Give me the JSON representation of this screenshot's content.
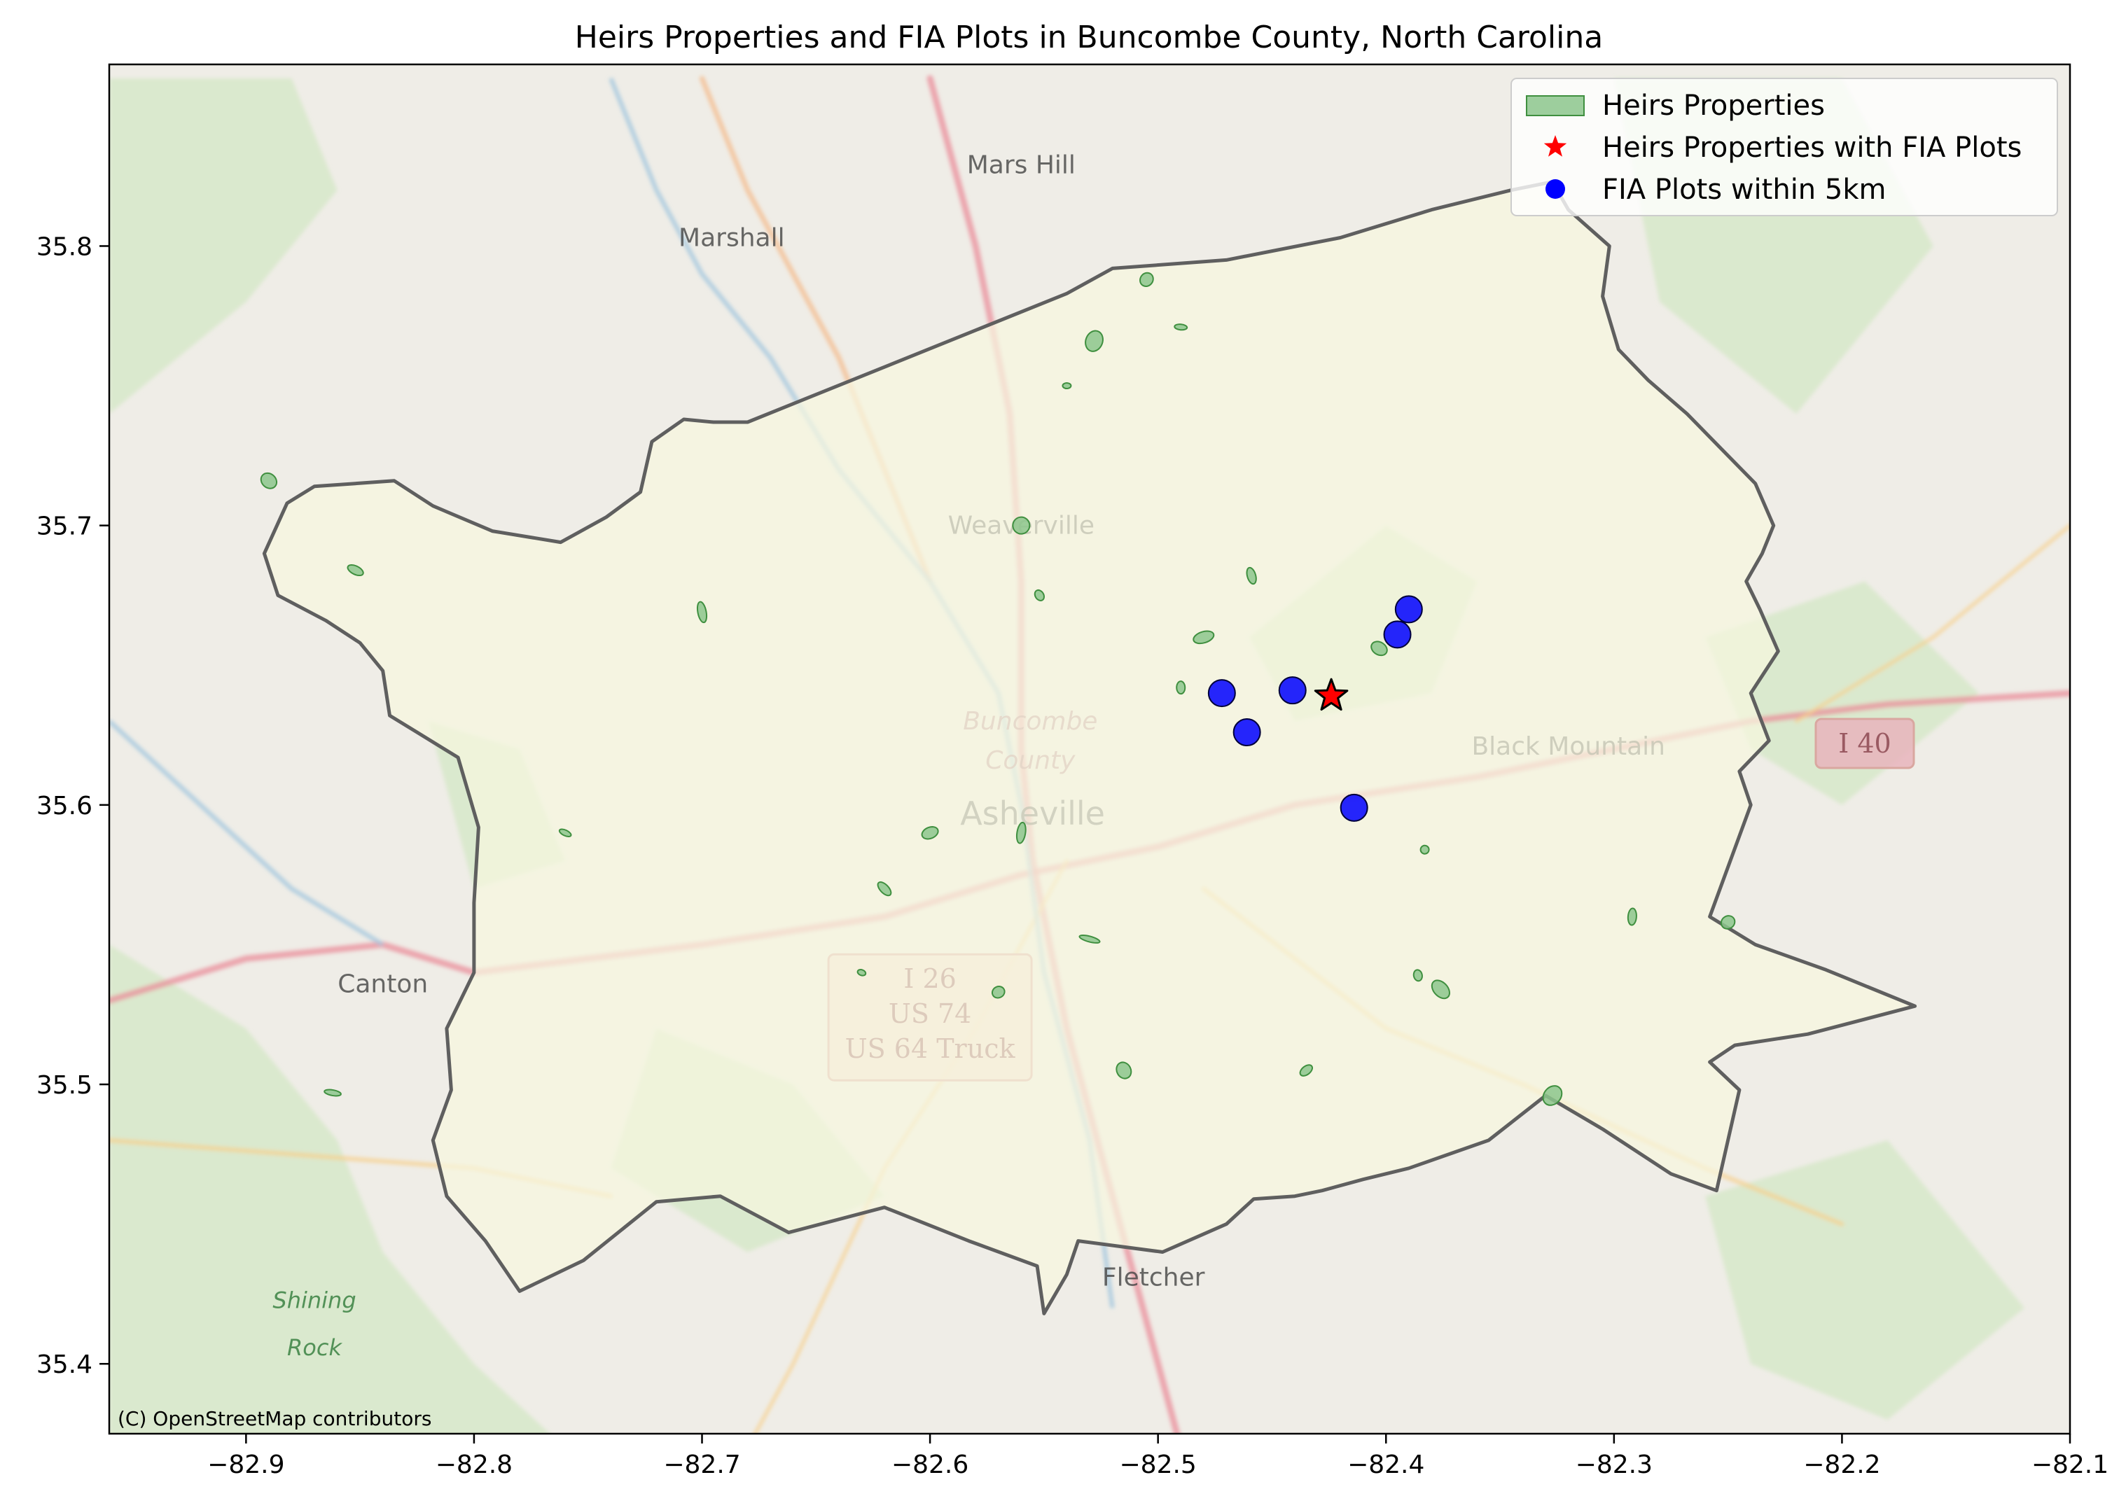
{
  "title": "Heirs Properties and FIA Plots in Buncombe County, North Carolina",
  "attribution": "(C) OpenStreetMap contributors",
  "axes": {
    "xlim": [
      -82.96,
      -82.1
    ],
    "ylim": [
      35.375,
      35.865
    ],
    "xticks": [
      -82.9,
      -82.8,
      -82.7,
      -82.6,
      -82.5,
      -82.4,
      -82.3,
      -82.2,
      -82.1
    ],
    "yticks": [
      35.4,
      35.5,
      35.6,
      35.7,
      35.8
    ],
    "xtick_labels": [
      "−82.9",
      "−82.8",
      "−82.7",
      "−82.6",
      "−82.5",
      "−82.4",
      "−82.3",
      "−82.2",
      "−82.1"
    ],
    "ytick_labels": [
      "35.4",
      "35.5",
      "35.6",
      "35.7",
      "35.8"
    ]
  },
  "legend": {
    "placement": "top-right",
    "items": [
      {
        "label": "Heirs Properties",
        "marker": "patch",
        "color": "#8cc68c"
      },
      {
        "label": "Heirs Properties with FIA Plots",
        "marker": "star",
        "color": "#ff0000"
      },
      {
        "label": "FIA Plots within 5km",
        "marker": "circle",
        "color": "#0000ff"
      }
    ]
  },
  "basemap_labels": [
    {
      "text": "Mars Hill",
      "lon": -82.56,
      "lat": 35.826
    },
    {
      "text": "Marshall",
      "lon": -82.687,
      "lat": 35.8
    },
    {
      "text": "Weaverville",
      "lon": -82.56,
      "lat": 35.697
    },
    {
      "text": "Buncombe",
      "lon": -82.556,
      "lat": 35.627,
      "style": "county"
    },
    {
      "text": "County",
      "lon": -82.556,
      "lat": 35.613,
      "style": "county"
    },
    {
      "text": "Asheville",
      "lon": -82.555,
      "lat": 35.593,
      "style": "city"
    },
    {
      "text": "Black Mountain",
      "lon": -82.32,
      "lat": 35.618
    },
    {
      "text": "Canton",
      "lon": -82.84,
      "lat": 35.533
    },
    {
      "text": "Fletcher",
      "lon": -82.502,
      "lat": 35.428
    },
    {
      "text": "Shining",
      "lon": -82.87,
      "lat": 35.42,
      "style": "park"
    },
    {
      "text": "Rock",
      "lon": -82.87,
      "lat": 35.403,
      "style": "park"
    }
  ],
  "road_shields": [
    {
      "lines": [
        "I 26",
        "US 74",
        "US 64 Truck"
      ],
      "lon": -82.6,
      "lat": 35.524
    },
    {
      "lines": [
        "I 40"
      ],
      "lon": -82.19,
      "lat": 35.622
    }
  ],
  "chart_data": {
    "type": "scatter",
    "title": "Heirs Properties and FIA Plots in Buncombe County, North Carolina",
    "xlim": [
      -82.96,
      -82.1
    ],
    "ylim": [
      35.375,
      35.865
    ],
    "county_boundary": [
      [
        -82.54,
        35.783
      ],
      [
        -82.52,
        35.792
      ],
      [
        -82.47,
        35.795
      ],
      [
        -82.42,
        35.803
      ],
      [
        -82.38,
        35.813
      ],
      [
        -82.345,
        35.82
      ],
      [
        -82.327,
        35.823
      ],
      [
        -82.32,
        35.813
      ],
      [
        -82.302,
        35.8
      ],
      [
        -82.305,
        35.782
      ],
      [
        -82.298,
        35.763
      ],
      [
        -82.285,
        35.752
      ],
      [
        -82.268,
        35.74
      ],
      [
        -82.25,
        35.725
      ],
      [
        -82.238,
        35.715
      ],
      [
        -82.23,
        35.7
      ],
      [
        -82.235,
        35.69
      ],
      [
        -82.242,
        35.68
      ],
      [
        -82.236,
        35.67
      ],
      [
        -82.228,
        35.655
      ],
      [
        -82.24,
        35.64
      ],
      [
        -82.232,
        35.623
      ],
      [
        -82.245,
        35.612
      ],
      [
        -82.24,
        35.6
      ],
      [
        -82.258,
        35.56
      ],
      [
        -82.238,
        35.55
      ],
      [
        -82.207,
        35.541
      ],
      [
        -82.168,
        35.528
      ],
      [
        -82.215,
        35.518
      ],
      [
        -82.247,
        35.514
      ],
      [
        -82.258,
        35.508
      ],
      [
        -82.245,
        35.498
      ],
      [
        -82.255,
        35.462
      ],
      [
        -82.275,
        35.468
      ],
      [
        -82.305,
        35.484
      ],
      [
        -82.33,
        35.496
      ],
      [
        -82.355,
        35.48
      ],
      [
        -82.39,
        35.47
      ],
      [
        -82.41,
        35.466
      ],
      [
        -82.428,
        35.462
      ],
      [
        -82.44,
        35.46
      ],
      [
        -82.458,
        35.459
      ],
      [
        -82.47,
        35.45
      ],
      [
        -82.498,
        35.44
      ],
      [
        -82.535,
        35.444
      ],
      [
        -82.54,
        35.432
      ],
      [
        -82.55,
        35.418
      ],
      [
        -82.553,
        35.435
      ],
      [
        -82.583,
        35.444
      ],
      [
        -82.62,
        35.456
      ],
      [
        -82.662,
        35.447
      ],
      [
        -82.692,
        35.46
      ],
      [
        -82.72,
        35.458
      ],
      [
        -82.752,
        35.437
      ],
      [
        -82.78,
        35.426
      ],
      [
        -82.795,
        35.444
      ],
      [
        -82.812,
        35.46
      ],
      [
        -82.818,
        35.48
      ],
      [
        -82.81,
        35.498
      ],
      [
        -82.812,
        35.52
      ],
      [
        -82.8,
        35.54
      ],
      [
        -82.8,
        35.565
      ],
      [
        -82.798,
        35.592
      ],
      [
        -82.807,
        35.617
      ],
      [
        -82.825,
        35.626
      ],
      [
        -82.837,
        35.632
      ],
      [
        -82.84,
        35.648
      ],
      [
        -82.85,
        35.658
      ],
      [
        -82.865,
        35.666
      ],
      [
        -82.886,
        35.675
      ],
      [
        -82.892,
        35.69
      ],
      [
        -82.882,
        35.708
      ],
      [
        -82.87,
        35.714
      ],
      [
        -82.835,
        35.716
      ],
      [
        -82.818,
        35.707
      ],
      [
        -82.792,
        35.698
      ],
      [
        -82.762,
        35.694
      ],
      [
        -82.742,
        35.703
      ],
      [
        -82.727,
        35.712
      ],
      [
        -82.722,
        35.73
      ],
      [
        -82.708,
        35.738
      ],
      [
        -82.695,
        35.737
      ],
      [
        -82.68,
        35.737
      ]
    ],
    "series": [
      {
        "name": "Heirs Properties",
        "kind": "parcels",
        "color": "#5aa85a",
        "points": [
          [
            -82.54,
            35.75
          ],
          [
            -82.505,
            35.788
          ],
          [
            -82.459,
            35.682
          ],
          [
            -82.528,
            35.766
          ],
          [
            -82.552,
            35.675
          ],
          [
            -82.49,
            35.771
          ],
          [
            -82.89,
            35.716
          ],
          [
            -82.7,
            35.669
          ],
          [
            -82.852,
            35.684
          ],
          [
            -82.57,
            35.533
          ],
          [
            -82.862,
            35.497
          ],
          [
            -82.376,
            35.534
          ],
          [
            -82.383,
            35.584
          ],
          [
            -82.403,
            35.656
          ],
          [
            -82.6,
            35.59
          ],
          [
            -82.53,
            35.552
          ],
          [
            -82.435,
            35.505
          ],
          [
            -82.49,
            35.642
          ],
          [
            -82.56,
            35.7
          ],
          [
            -82.48,
            35.66
          ],
          [
            -82.63,
            35.54
          ],
          [
            -82.25,
            35.558
          ],
          [
            -82.292,
            35.56
          ],
          [
            -82.327,
            35.496
          ],
          [
            -82.386,
            35.539
          ],
          [
            -82.76,
            35.59
          ],
          [
            -82.515,
            35.505
          ],
          [
            -82.56,
            35.59
          ],
          [
            -82.62,
            35.57
          ]
        ]
      },
      {
        "name": "Heirs Properties with FIA Plots",
        "kind": "star",
        "color": "#ff0000",
        "points": [
          [
            -82.424,
            35.639
          ]
        ]
      },
      {
        "name": "FIA Plots within 5km",
        "kind": "circle",
        "color": "#0000ff",
        "points": [
          [
            -82.472,
            35.64
          ],
          [
            -82.441,
            35.641
          ],
          [
            -82.461,
            35.626
          ],
          [
            -82.395,
            35.661
          ],
          [
            -82.39,
            35.67
          ],
          [
            -82.414,
            35.599
          ]
        ]
      }
    ]
  }
}
